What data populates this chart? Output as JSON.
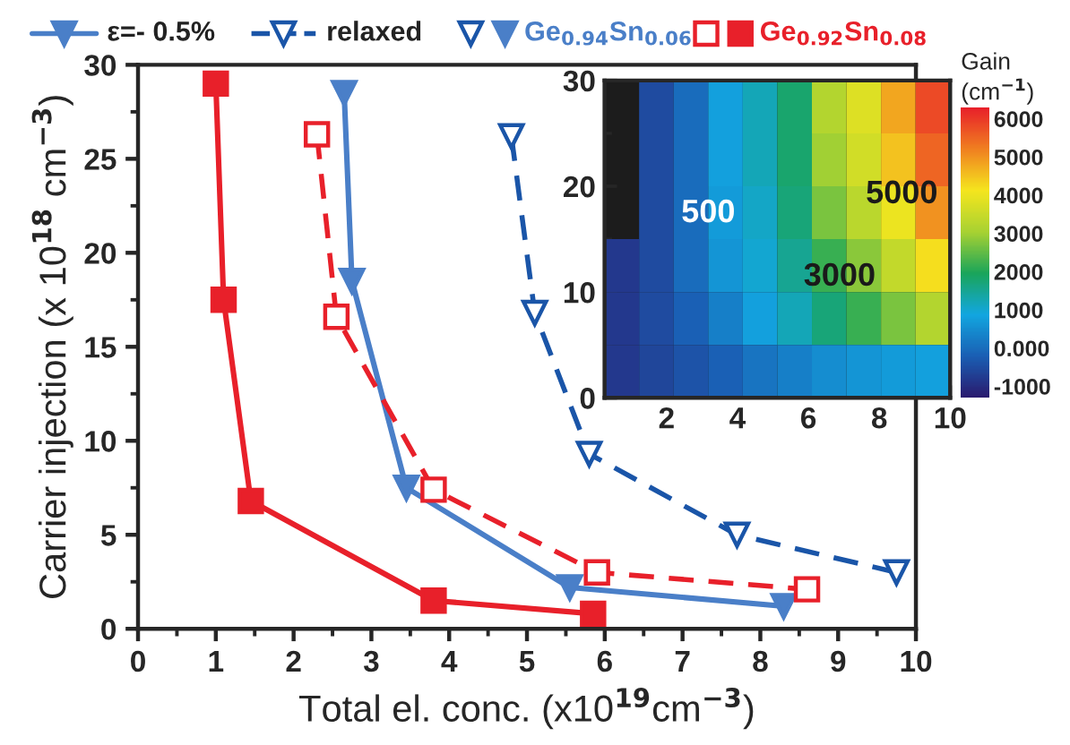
{
  "chart_data": [
    {
      "type": "line",
      "xlabel": "Total el. conc. (x10$^{19}$cm$^{−3}$)",
      "ylabel": "Carrier injection (x 10$^{18}$ cm$^{−3}$)",
      "xlim": [
        0,
        10
      ],
      "ylim": [
        0,
        30
      ],
      "xticks": [
        0,
        1,
        2,
        3,
        4,
        5,
        6,
        7,
        8,
        9,
        10
      ],
      "yticks": [
        0,
        5,
        10,
        15,
        20,
        25,
        30
      ],
      "grid": false,
      "annotations": [
        "ε=- 0.5%",
        "relaxed",
        "Ge$_{0.94}$Sn$_{0.06}$",
        "Ge$_{0.92}$Sn$_{0.08}$"
      ],
      "series": [
        {
          "color": "#4a7fc8",
          "line_style": "solid",
          "marker": "triangle",
          "x": [
            2.65,
            2.75,
            3.45,
            5.55,
            8.3
          ],
          "values": [
            28.5,
            18.5,
            7.5,
            2.2,
            1.2
          ]
        },
        {
          "color": "#1a55a8",
          "line_style": "dashed",
          "marker": "triangle",
          "x": [
            4.8,
            5.1,
            5.8,
            7.7,
            9.75
          ],
          "values": [
            26.2,
            16.8,
            9.3,
            5,
            3
          ]
        },
        {
          "color": "#e8202a",
          "line_style": "solid",
          "marker": "square",
          "x": [
            1.0,
            1.1,
            1.45,
            3.8,
            5.85
          ],
          "values": [
            29,
            17.5,
            6.8,
            1.5,
            0.8
          ]
        },
        {
          "color": "#e8202a",
          "line_style": "dashed",
          "marker": "square",
          "x": [
            2.3,
            2.55,
            3.8,
            5.9,
            8.6
          ],
          "values": [
            26.3,
            16.6,
            7.4,
            3,
            2.1
          ]
        }
      ]
    },
    {
      "type": "heatmap",
      "clabel": "Gain\n(cm$^{−1}$)",
      "xlim": [
        0.25,
        10
      ],
      "ylim": [
        0,
        30
      ],
      "xticks": [
        2,
        4,
        6,
        8,
        10
      ],
      "yticks": [
        0,
        10,
        20,
        30
      ],
      "clim": [
        -1300,
        6300
      ],
      "cticks": [
        -1000,
        {
          "value": 0,
          "label": "0.000"
        },
        1000,
        2000,
        3000,
        4000,
        5000,
        6000
      ],
      "colors": [
        "#2a1a6e",
        "#1a5fb4",
        "#12a6e0",
        "#1aa55a",
        "#a8d232",
        "#f5e61e",
        "#f08020",
        "#e8202a"
      ],
      "annotations": [
        "500",
        "3000",
        "5000"
      ],
      "cells": [
        [
          null,
          -500,
          0,
          800,
          1200,
          1800,
          3200,
          3800,
          4800,
          5800
        ],
        [
          null,
          -500,
          0,
          800,
          1200,
          1800,
          3000,
          3600,
          4500,
          5500
        ],
        [
          null,
          -500,
          0,
          700,
          1100,
          1700,
          2700,
          3300,
          4000,
          5000
        ],
        [
          -800,
          -500,
          0,
          600,
          1000,
          1500,
          2200,
          2800,
          3400,
          4200
        ],
        [
          -800,
          -500,
          -200,
          300,
          800,
          1200,
          1700,
          2200,
          2700,
          3200
        ],
        [
          -800,
          -600,
          -400,
          -200,
          100,
          300,
          500,
          600,
          700,
          800
        ]
      ]
    }
  ]
}
